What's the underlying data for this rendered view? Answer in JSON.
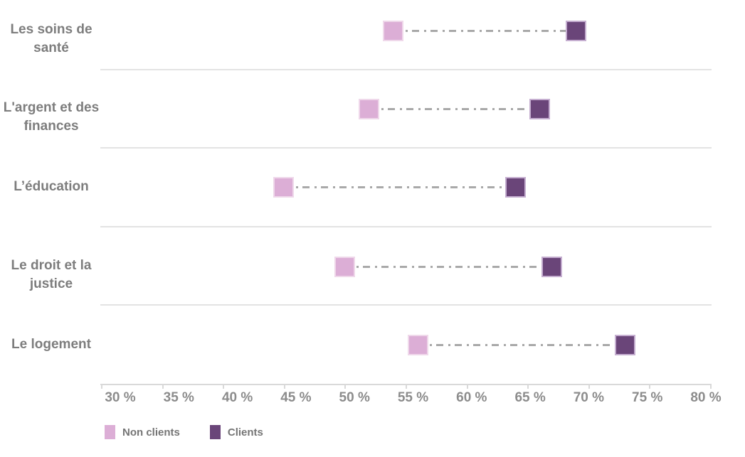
{
  "chart_data": {
    "type": "dumbbell",
    "orientation": "horizontal",
    "categories": [
      "Les soins de santé",
      "L'argent et des finances",
      "L’éducation",
      "Le droit et la justice",
      "Le logement"
    ],
    "series": [
      {
        "name": "Non clients",
        "color": "#dcaed6",
        "values": [
          54,
          52,
          45,
          50,
          56
        ]
      },
      {
        "name": "Clients",
        "color": "#6a4579",
        "values": [
          69,
          66,
          64,
          67,
          73
        ]
      }
    ],
    "x_axis": {
      "min": 30,
      "max": 80,
      "step": 5,
      "unit": "%",
      "tick_labels": [
        "30 %",
        "35 %",
        "40 %",
        "45 %",
        "50 %",
        "55 %",
        "60 %",
        "65 %",
        "70 %",
        "75 %",
        "80 %"
      ]
    },
    "title": "",
    "connector_style": "dash-dot",
    "connector_color": "#a9a9a9",
    "grid": "horizontal-row-separators",
    "legend_position": "bottom-left"
  },
  "colors": {
    "background": "#ffffff",
    "category_label": "#7d7d7d",
    "axis_label": "#8c8c8c",
    "legend_label": "#757575",
    "separator": "#e3e3e3",
    "axis_line": "#d9d9d9"
  }
}
